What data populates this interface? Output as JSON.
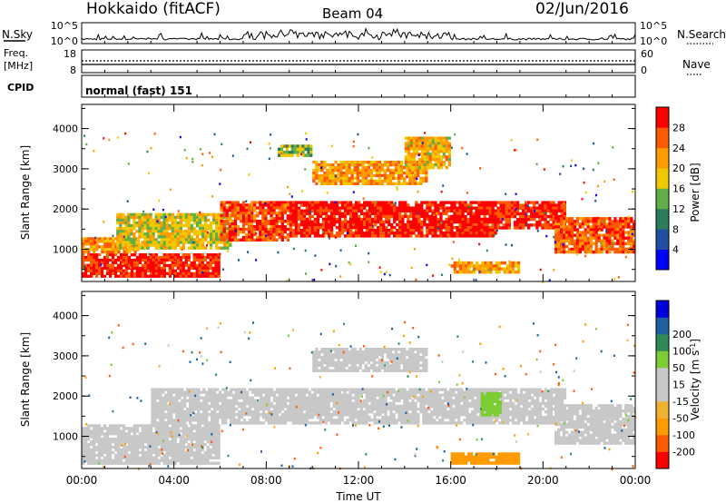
{
  "header": {
    "station": "Hokkaido (fitACF)",
    "beam": "Beam 04",
    "date": "02/Jun/2016"
  },
  "sky_panel": {
    "left_label": "N.Sky",
    "right_label": "N.Search",
    "ticks_left": [
      "10^5",
      "10^0"
    ],
    "ticks_right": [
      "10^5",
      "10^0"
    ]
  },
  "freq_panel": {
    "label_line1": "Freq.",
    "label_line2": "[MHz]",
    "ticks_left": [
      "18",
      "8"
    ],
    "ticks_right": [
      "60",
      "0"
    ],
    "right_label": "Nave"
  },
  "cpid": {
    "label": "CPID",
    "value": "normal (fast) 151"
  },
  "colors": {
    "power": [
      "#0000ff",
      "#1e4fa0",
      "#2e7d5a",
      "#5fae47",
      "#f0c800",
      "#ff9a00",
      "#ff5a00",
      "#ff0000"
    ],
    "velocity": [
      "#ff0000",
      "#ff5a00",
      "#ff9a00",
      "#f0b030",
      "#c8c8c8",
      "#c8c8c8",
      "#7ccd34",
      "#2e8b57",
      "#2060a0",
      "#0000dd"
    ]
  },
  "chart_data": [
    {
      "type": "heatmap",
      "name": "power",
      "ylabel": "Slant Range [km]",
      "yticks": [
        "1000",
        "2000",
        "3000",
        "4000"
      ],
      "ylim": [
        200,
        4600
      ],
      "colorbar_label": "Power [dB]",
      "colorbar_ticks": [
        "4",
        "8",
        "12",
        "16",
        "20",
        "24",
        "28"
      ],
      "colorbar_range": [
        0,
        32
      ],
      "regions": [
        {
          "t0": 0.0,
          "t1": 6.0,
          "r0": 300,
          "r1": 900,
          "v": 29
        },
        {
          "t0": 0.0,
          "t1": 2.5,
          "r0": 900,
          "r1": 1300,
          "v": 22
        },
        {
          "t0": 1.5,
          "t1": 6.5,
          "r0": 1000,
          "r1": 1900,
          "v": 18
        },
        {
          "t0": 6.0,
          "t1": 9.0,
          "r0": 1200,
          "r1": 2200,
          "v": 27
        },
        {
          "t0": 9.0,
          "t1": 18.0,
          "r0": 1300,
          "r1": 2200,
          "v": 30
        },
        {
          "t0": 18.0,
          "t1": 21.0,
          "r0": 1500,
          "r1": 2200,
          "v": 29
        },
        {
          "t0": 20.5,
          "t1": 24.0,
          "r0": 900,
          "r1": 1800,
          "v": 26
        },
        {
          "t0": 10.0,
          "t1": 15.0,
          "r0": 2600,
          "r1": 3200,
          "v": 22
        },
        {
          "t0": 8.5,
          "t1": 10.0,
          "r0": 3300,
          "r1": 3600,
          "v": 15
        },
        {
          "t0": 14.0,
          "t1": 16.0,
          "r0": 3000,
          "r1": 3800,
          "v": 20
        },
        {
          "t0": 16.0,
          "t1": 19.0,
          "r0": 400,
          "r1": 700,
          "v": 22
        }
      ]
    },
    {
      "type": "heatmap",
      "name": "velocity",
      "ylabel": "Slant Range [km]",
      "yticks": [
        "1000",
        "2000",
        "3000",
        "4000"
      ],
      "ylim": [
        200,
        4600
      ],
      "xlabel": "Time UT",
      "xticks": [
        "00:00",
        "04:00",
        "08:00",
        "12:00",
        "16:00",
        "20:00",
        "00:00"
      ],
      "xlim": [
        0,
        24
      ],
      "colorbar_label": "Velocity [m s^-1]",
      "colorbar_ticks": [
        "-200",
        "-100",
        "-50",
        "-15",
        "15",
        "50",
        "100",
        "200"
      ],
      "regions": [
        {
          "t0": 0.0,
          "t1": 6.0,
          "r0": 300,
          "r1": 1300,
          "v": 0
        },
        {
          "t0": 3.0,
          "t1": 21.0,
          "r0": 1300,
          "r1": 2200,
          "v": 0
        },
        {
          "t0": 17.3,
          "t1": 18.2,
          "r0": 1500,
          "r1": 2100,
          "v": 30
        },
        {
          "t0": 20.5,
          "t1": 24.0,
          "r0": 800,
          "r1": 1800,
          "v": 0
        },
        {
          "t0": 10.0,
          "t1": 15.0,
          "r0": 2600,
          "r1": 3200,
          "v": 0
        },
        {
          "t0": 16.0,
          "t1": 19.0,
          "r0": 300,
          "r1": 600,
          "v": -60
        }
      ]
    }
  ]
}
